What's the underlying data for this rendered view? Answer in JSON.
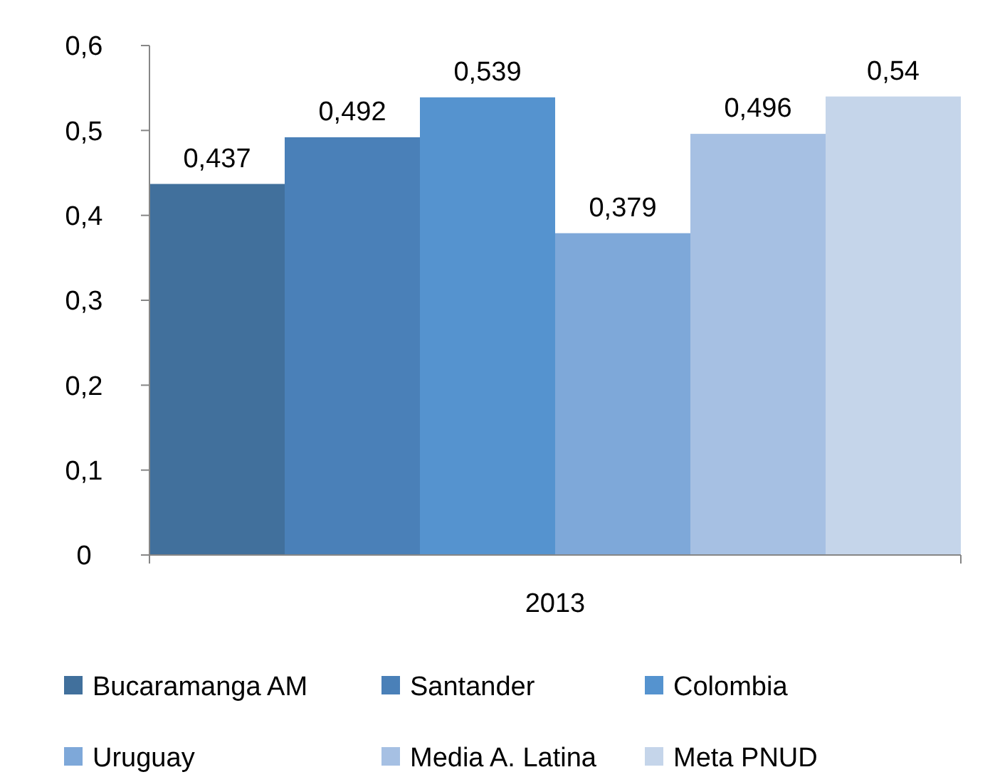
{
  "chart_data": {
    "type": "bar",
    "categories": [
      "2013"
    ],
    "series": [
      {
        "name": "Bucaramanga AM",
        "color": "#41709c",
        "values": [
          0.437
        ],
        "value_labels": [
          "0,437"
        ]
      },
      {
        "name": "Santander",
        "color": "#4a80b8",
        "values": [
          0.492
        ],
        "value_labels": [
          "0,492"
        ]
      },
      {
        "name": "Colombia",
        "color": "#5593cf",
        "values": [
          0.539
        ],
        "value_labels": [
          "0,539"
        ]
      },
      {
        "name": "Uruguay",
        "color": "#7ea8d9",
        "values": [
          0.379
        ],
        "value_labels": [
          "0,379"
        ]
      },
      {
        "name": "Media A. Latina",
        "color": "#a6c0e3",
        "values": [
          0.496
        ],
        "value_labels": [
          "0,496"
        ]
      },
      {
        "name": "Meta PNUD",
        "color": "#c5d5ea",
        "values": [
          0.54
        ],
        "value_labels": [
          "0,54"
        ]
      }
    ],
    "ylim": [
      0,
      0.6
    ],
    "yticks": [
      0,
      {
        "value": 0.1,
        "label": "0,1"
      },
      {
        "value": 0.2,
        "label": "0,2"
      },
      {
        "value": 0.3,
        "label": "0,3"
      },
      {
        "value": 0.4,
        "label": "0,4"
      },
      {
        "value": 0.5,
        "label": "0,5"
      },
      {
        "value": 0.6,
        "label": "0,6"
      }
    ],
    "grid": false,
    "legend": "bottom"
  }
}
